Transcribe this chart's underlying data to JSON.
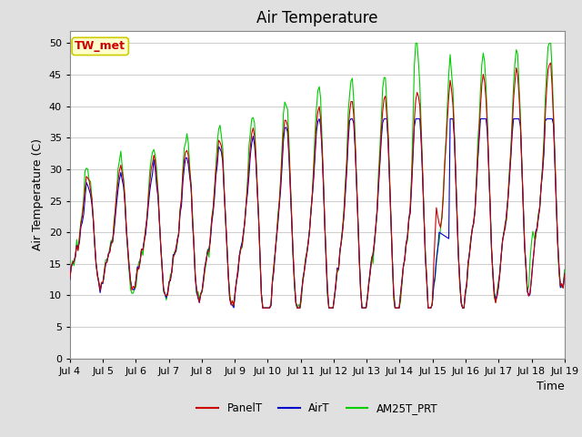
{
  "title": "Air Temperature",
  "ylabel": "Air Temperature (C)",
  "xlabel": "Time",
  "annotation": "TW_met",
  "annotation_color": "#cc0000",
  "annotation_bg": "#ffffcc",
  "annotation_border": "#cccc00",
  "ylim": [
    0,
    52
  ],
  "yticks": [
    0,
    5,
    10,
    15,
    20,
    25,
    30,
    35,
    40,
    45,
    50
  ],
  "x_labels": [
    "Jul 4",
    "Jul 5",
    "Jul 6",
    "Jul 7",
    "Jul 8",
    "Jul 9",
    "Jul 10",
    "Jul 11",
    "Jul 12",
    "Jul 13",
    "Jul 14",
    "Jul 15",
    "Jul 16",
    "Jul 17",
    "Jul 18",
    "Jul 19"
  ],
  "legend": [
    "PanelT",
    "AirT",
    "AM25T_PRT"
  ],
  "line_colors": [
    "#cc0000",
    "#0000cc",
    "#00cc00"
  ],
  "plot_bg_color": "#ffffff",
  "fig_bg_color": "#e0e0e0",
  "title_fontsize": 12,
  "axis_label_fontsize": 9,
  "tick_fontsize": 8,
  "grid_color": "#d0d0d0",
  "figwidth": 6.4,
  "figheight": 4.8,
  "dpi": 100
}
